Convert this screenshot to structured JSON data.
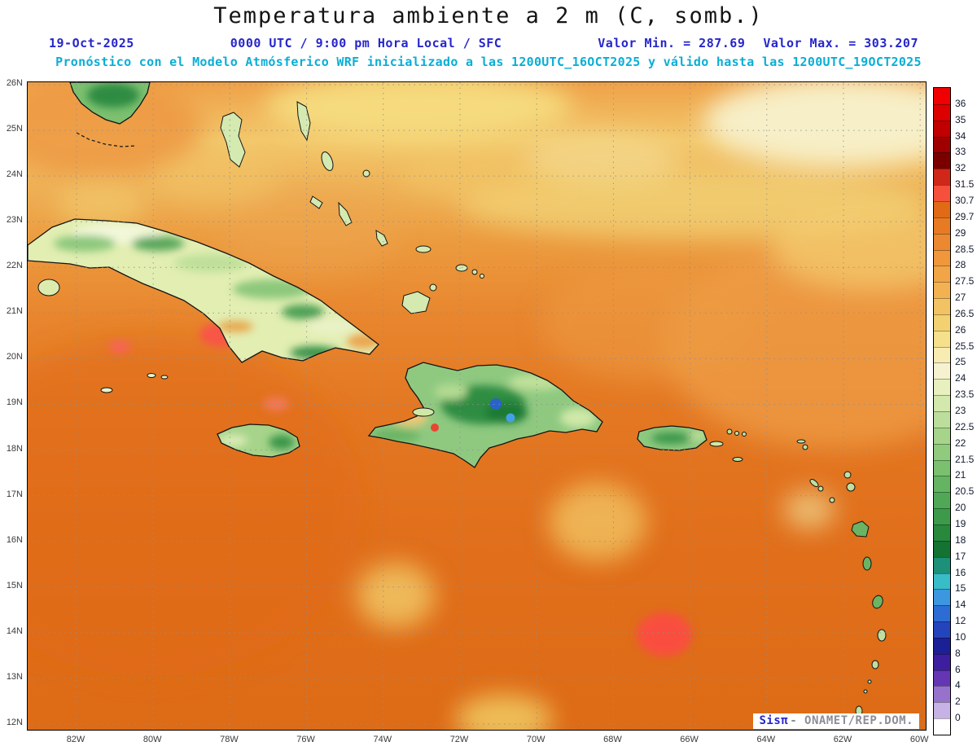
{
  "header": {
    "title": "Temperatura ambiente a 2 m (C, somb.)",
    "date": "19-Oct-2025",
    "time": "0000 UTC / 9:00 pm Hora Local / SFC",
    "valor_min": "Valor Min. = 287.69",
    "valor_max": "Valor Max. = 303.207",
    "model_line": "Pronóstico con el Modelo Atmósferico WRF inicializado a las 1200UTC_16OCT2025 y válido hasta las  1200UTC_19OCT2025"
  },
  "map": {
    "lat_ticks": [
      "26N",
      "25N",
      "24N",
      "23N",
      "22N",
      "21N",
      "20N",
      "19N",
      "18N",
      "17N",
      "16N",
      "15N",
      "14N",
      "13N",
      "12N"
    ],
    "lon_ticks": [
      "82W",
      "80W",
      "78W",
      "76W",
      "74W",
      "72W",
      "70W",
      "68W",
      "66W",
      "64W",
      "62W",
      "60W"
    ]
  },
  "colorbar": {
    "labels": [
      "36",
      "35",
      "34",
      "33",
      "32",
      "31.5",
      "30.7",
      "29.7",
      "29",
      "28.5",
      "28",
      "27.5",
      "27",
      "26.5",
      "26",
      "25.5",
      "25",
      "24",
      "23.5",
      "23",
      "22.5",
      "22",
      "21.5",
      "21",
      "20.5",
      "20",
      "19",
      "18",
      "17",
      "16",
      "15",
      "14",
      "12",
      "10",
      "8",
      "6",
      "4",
      "2",
      "0"
    ],
    "colors": [
      "#f00000",
      "#dc0000",
      "#c00000",
      "#9e0000",
      "#7a0000",
      "#d02818",
      "#f4503c",
      "#e06a16",
      "#e87a24",
      "#ec8930",
      "#ef973a",
      "#f1a546",
      "#f3b252",
      "#f3c262",
      "#f3d170",
      "#f5e08c",
      "#f8ecb2",
      "#f6f2d0",
      "#e7f0be",
      "#d2e8ac",
      "#bcde9c",
      "#a6d48a",
      "#90ca7c",
      "#7ac06e",
      "#64b462",
      "#50a856",
      "#3c9a4a",
      "#28883c",
      "#147232",
      "#1c9078",
      "#38bcc8",
      "#3c96e0",
      "#2c6cd4",
      "#2444bc",
      "#1c2096",
      "#3c1e9e",
      "#6436b4",
      "#9672cc",
      "#c6b2e4",
      "#ffffff"
    ]
  },
  "watermark": {
    "brand": "Sisπ",
    "source": "- ONAMET/REP.DOM."
  },
  "chart_data": {
    "type": "heatmap",
    "title": "Temperatura ambiente a 2 m (C, somb.)",
    "units": "C",
    "x_ticks": [
      "82W",
      "80W",
      "78W",
      "76W",
      "74W",
      "72W",
      "70W",
      "68W",
      "66W",
      "64W",
      "62W",
      "60W"
    ],
    "y_ticks": [
      "26N",
      "25N",
      "24N",
      "23N",
      "22N",
      "21N",
      "20N",
      "19N",
      "18N",
      "17N",
      "16N",
      "15N",
      "14N",
      "13N",
      "12N"
    ],
    "contour_levels": [
      0,
      2,
      4,
      6,
      8,
      10,
      12,
      14,
      15,
      16,
      17,
      18,
      19,
      20,
      20.5,
      21,
      21.5,
      22,
      22.5,
      23,
      23.5,
      24,
      25,
      25.5,
      26,
      26.5,
      27,
      27.5,
      28,
      28.5,
      29,
      29.7,
      30.7,
      31.5,
      32,
      33,
      34,
      35,
      36
    ],
    "value_min": 287.69,
    "value_max": 303.207,
    "legend_position": "right",
    "grid": "dotted"
  }
}
